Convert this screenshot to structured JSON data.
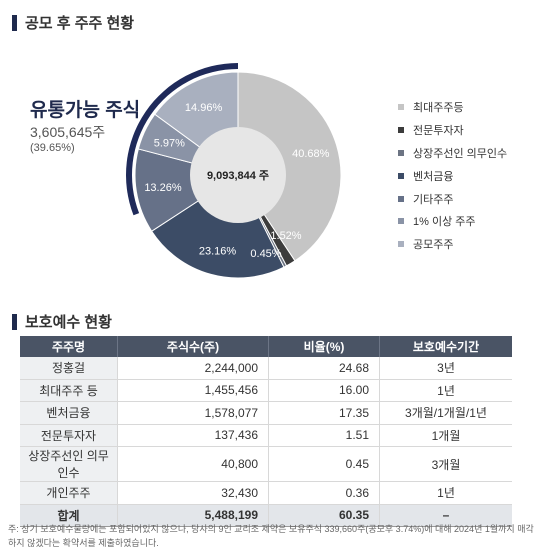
{
  "section1_title": "공모 후 주주 현황",
  "section2_title": "보호예수 현황",
  "highlight": {
    "title": "유통가능 주식",
    "shares": "3,605,645주",
    "percent": "(39.65%)"
  },
  "chart_data": {
    "type": "pie",
    "center_label": "9,093,844 주",
    "legend_position": "right",
    "slices": [
      {
        "name": "최대주주등",
        "value": 40.68,
        "label": "40.68%",
        "color": "#c5c5c5"
      },
      {
        "name": "전문투자자",
        "value": 1.52,
        "label": "1.52%",
        "color": "#3c3c3c"
      },
      {
        "name": "상장주선인 의무인수",
        "value": 0.45,
        "label": "0.45%",
        "color": "#6c7483"
      },
      {
        "name": "벤처금융",
        "value": 23.16,
        "label": "23.16%",
        "color": "#3c4c66"
      },
      {
        "name": "기타주주",
        "value": 13.26,
        "label": "13.26%",
        "color": "#667188"
      },
      {
        "name": "1% 이상 주주",
        "value": 5.97,
        "label": "5.97%",
        "color": "#8a93a6"
      },
      {
        "name": "공모주주",
        "value": 14.96,
        "label": "14.96%",
        "color": "#a9b0bf"
      }
    ]
  },
  "table": {
    "headers": [
      "주주명",
      "주식수(주)",
      "비율(%)",
      "보호예수기간"
    ],
    "rows": [
      {
        "name": "정홍걸",
        "shares": "2,244,000",
        "ratio": "24.68",
        "period": "3년"
      },
      {
        "name": "최대주주 등",
        "shares": "1,455,456",
        "ratio": "16.00",
        "period": "1년"
      },
      {
        "name": "벤처금융",
        "shares": "1,578,077",
        "ratio": "17.35",
        "period": "3개월/1개월/1년"
      },
      {
        "name": "전문투자자",
        "shares": "137,436",
        "ratio": "1.51",
        "period": "1개월"
      },
      {
        "name": "상장주선인 의무인수",
        "shares": "40,800",
        "ratio": "0.45",
        "period": "3개월"
      },
      {
        "name": "개인주주",
        "shares": "32,430",
        "ratio": "0.36",
        "period": "1년"
      }
    ],
    "total": {
      "name": "합계",
      "shares": "5,488,199",
      "ratio": "60.35",
      "period": "–"
    }
  },
  "note": "주: 상기 보호예수물량에는 포함되어있지 않으나, 당사의 9인 교리조 제약은 보유주식 339,660주(공모후 3.74%)에 대해 2024년 1월까지 매각하지 않겠다는 확약서를 제출하였습니다."
}
